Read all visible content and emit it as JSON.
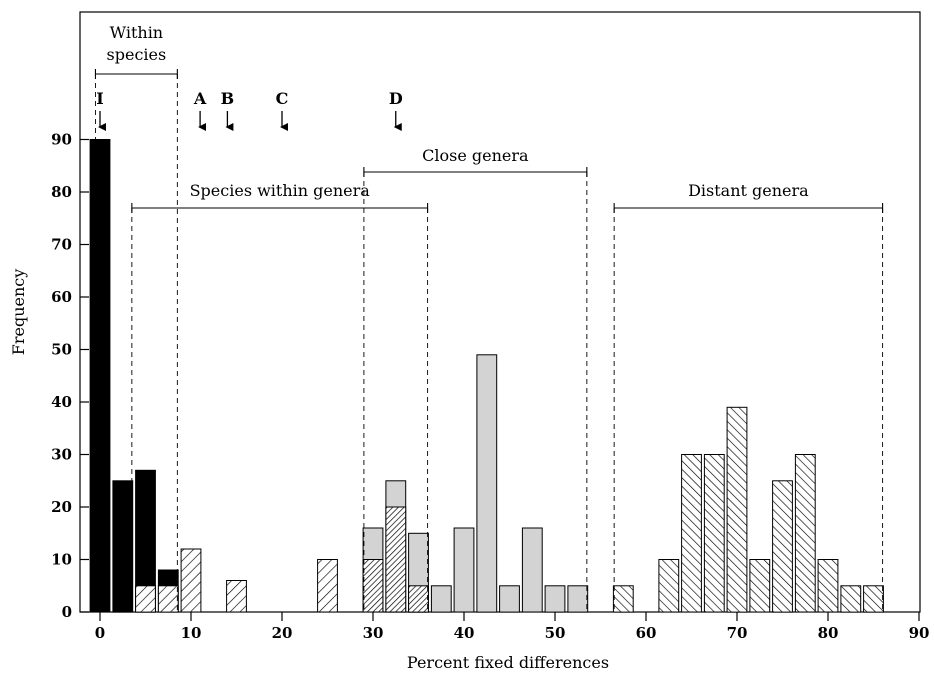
{
  "chart_data": {
    "type": "bar",
    "xlabel": "Percent fixed differences",
    "ylabel": "Frequency",
    "xlim": [
      -2,
      90
    ],
    "ylim": [
      0,
      100
    ],
    "x_ticks": [
      0,
      10,
      20,
      30,
      40,
      50,
      60,
      70,
      80,
      90
    ],
    "y_ticks": [
      0,
      10,
      20,
      30,
      40,
      50,
      60,
      70,
      80,
      90
    ],
    "bin_width": 2.5,
    "grid": false,
    "series": [
      {
        "pattern": "solid-black",
        "color": "#000000",
        "x": [
          0,
          2.5,
          5,
          7.5
        ],
        "values": [
          90,
          25,
          27,
          8
        ]
      },
      {
        "pattern": "wide-hatch",
        "color": "#ffffff",
        "x": [
          5,
          7.5,
          10,
          15,
          25
        ],
        "values": [
          5,
          5,
          12,
          6,
          10
        ]
      },
      {
        "pattern": "gray",
        "color": "#d3d3d3",
        "x": [
          30,
          32.5,
          35,
          37.5,
          40,
          42.5,
          45,
          47.5,
          50,
          52.5
        ],
        "values": [
          16,
          25,
          15,
          5,
          16,
          49,
          5,
          16,
          5,
          5
        ]
      },
      {
        "pattern": "dense-hatch",
        "color": "#ffffff",
        "x": [
          30,
          32.5,
          35
        ],
        "values": [
          10,
          20,
          5
        ]
      },
      {
        "pattern": "diagonal-hatch",
        "color": "#ffffff",
        "x": [
          57.5,
          62.5,
          65,
          67.5,
          70,
          72.5,
          75,
          77.5,
          80,
          82.5,
          85
        ],
        "values": [
          5,
          10,
          30,
          30,
          39,
          10,
          25,
          30,
          10,
          5,
          5
        ]
      }
    ],
    "annotations": {
      "within_species": {
        "label_line1": "Within",
        "label_line2": "species",
        "range": [
          -0.5,
          8.5
        ]
      },
      "species_within_genera": {
        "label": "Species within genera",
        "range": [
          3.5,
          36
        ]
      },
      "close_genera": {
        "label": "Close genera",
        "range": [
          29,
          53.5
        ]
      },
      "distant_genera": {
        "label": "Distant genera",
        "range": [
          56.5,
          86
        ]
      }
    },
    "markers": [
      {
        "label": "I",
        "x": 0
      },
      {
        "label": "A",
        "x": 11
      },
      {
        "label": "B",
        "x": 14
      },
      {
        "label": "C",
        "x": 20
      },
      {
        "label": "D",
        "x": 32.5
      }
    ]
  }
}
